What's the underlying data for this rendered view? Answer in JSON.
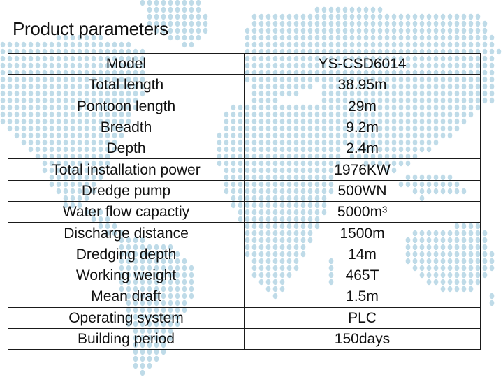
{
  "title": "Product parameters",
  "table": {
    "rows": [
      {
        "label": "Model",
        "value": "YS-CSD6014"
      },
      {
        "label": "Total length",
        "value": "38.95m"
      },
      {
        "label": "Pontoon length",
        "value": "29m"
      },
      {
        "label": "Breadth",
        "value": "9.2m"
      },
      {
        "label": "Depth",
        "value": "2.4m"
      },
      {
        "label": "Total installation power",
        "value": "1976KW"
      },
      {
        "label": "Dredge pump",
        "value": "500WN"
      },
      {
        "label": "Water flow capactiy",
        "value": "5000m³"
      },
      {
        "label": "Discharge distance",
        "value": "1500m"
      },
      {
        "label": "Dredging depth",
        "value": "14m"
      },
      {
        "label": "Working weight",
        "value": "465T"
      },
      {
        "label": "Mean draft",
        "value": "1.5m"
      },
      {
        "label": "Operating system",
        "value": "PLC"
      },
      {
        "label": "Building period",
        "value": "150days"
      }
    ]
  },
  "colors": {
    "map_dots": "#a9cfe0",
    "border": "#1a1a1a",
    "text": "#111111"
  },
  "icons": {
    "background": "dotted-world-map"
  }
}
